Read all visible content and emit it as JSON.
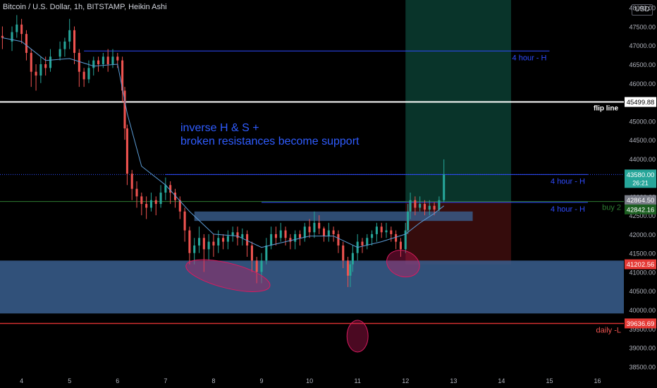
{
  "header": {
    "title": "Bitcoin / U.S. Dollar, 1h, BITSTAMP, Heikin Ashi",
    "currency": "USD"
  },
  "annotation": {
    "line1": "inverse H & S +",
    "line2": "broken resistances become support"
  },
  "colors": {
    "background": "#000000",
    "bull": "#26a69a",
    "bear": "#ef5350",
    "ma": "#5b9bd5",
    "zone": "#3a5f8f",
    "resistance": "#2f4bff",
    "flip": "#ffffff",
    "buy": "#2e7d32",
    "support": "#d32f2f",
    "ellipse": "#d81b60"
  },
  "chart_data": {
    "type": "candlestick",
    "ylim": [
      38300,
      48200
    ],
    "xlim": [
      3.55,
      16.55
    ],
    "x_ticks": [
      4,
      5,
      6,
      7,
      8,
      9,
      10,
      11,
      12,
      13,
      14,
      15,
      16
    ],
    "y_ticks": [
      38500,
      39000,
      39500,
      40000,
      40500,
      41000,
      41500,
      42000,
      42500,
      43000,
      43500,
      44000,
      44500,
      45000,
      45500,
      46000,
      46500,
      47000,
      47500,
      48000
    ],
    "candles": [
      {
        "x": 3.6,
        "o": 47250,
        "c": 47200,
        "h": 47500,
        "l": 46900
      },
      {
        "x": 3.8,
        "o": 47100,
        "c": 47350,
        "h": 47500,
        "l": 46850
      },
      {
        "x": 3.9,
        "o": 47350,
        "c": 47550,
        "h": 47800,
        "l": 47200
      },
      {
        "x": 4.0,
        "o": 47550,
        "c": 47300,
        "h": 47700,
        "l": 47050
      },
      {
        "x": 4.1,
        "o": 47300,
        "c": 46800,
        "h": 47400,
        "l": 46600
      },
      {
        "x": 4.2,
        "o": 46800,
        "c": 46300,
        "h": 46900,
        "l": 45900
      },
      {
        "x": 4.3,
        "o": 46300,
        "c": 46200,
        "h": 46500,
        "l": 45800
      },
      {
        "x": 4.4,
        "o": 46200,
        "c": 46500,
        "h": 46700,
        "l": 46000
      },
      {
        "x": 4.5,
        "o": 46500,
        "c": 46400,
        "h": 46700,
        "l": 46200
      },
      {
        "x": 4.6,
        "o": 46400,
        "c": 46700,
        "h": 46900,
        "l": 46300
      },
      {
        "x": 4.8,
        "o": 46700,
        "c": 46900,
        "h": 47100,
        "l": 46600
      },
      {
        "x": 4.9,
        "o": 46900,
        "c": 47100,
        "h": 47200,
        "l": 46700
      },
      {
        "x": 5.0,
        "o": 47100,
        "c": 47400,
        "h": 47700,
        "l": 46900
      },
      {
        "x": 5.1,
        "o": 47400,
        "c": 46800,
        "h": 47500,
        "l": 46500
      },
      {
        "x": 5.2,
        "o": 46800,
        "c": 46300,
        "h": 46900,
        "l": 45900
      },
      {
        "x": 5.3,
        "o": 46300,
        "c": 46100,
        "h": 46400,
        "l": 45900
      },
      {
        "x": 5.4,
        "o": 46100,
        "c": 46400,
        "h": 46600,
        "l": 46000
      },
      {
        "x": 5.5,
        "o": 46400,
        "c": 46600,
        "h": 46700,
        "l": 46200
      },
      {
        "x": 5.6,
        "o": 46600,
        "c": 46500,
        "h": 46700,
        "l": 46300
      },
      {
        "x": 5.7,
        "o": 46500,
        "c": 46700,
        "h": 46800,
        "l": 46400
      },
      {
        "x": 5.8,
        "o": 46700,
        "c": 46500,
        "h": 46900,
        "l": 46300
      },
      {
        "x": 5.9,
        "o": 46500,
        "c": 46700,
        "h": 46900,
        "l": 46400
      },
      {
        "x": 6.0,
        "o": 46700,
        "c": 46600,
        "h": 46800,
        "l": 46400
      },
      {
        "x": 6.1,
        "o": 46600,
        "c": 45800,
        "h": 46700,
        "l": 45500
      },
      {
        "x": 6.15,
        "o": 45800,
        "c": 44800,
        "h": 45900,
        "l": 44500
      },
      {
        "x": 6.2,
        "o": 44800,
        "c": 43600,
        "h": 44900,
        "l": 43300
      },
      {
        "x": 6.3,
        "o": 43600,
        "c": 43200,
        "h": 43700,
        "l": 42900
      },
      {
        "x": 6.4,
        "o": 43200,
        "c": 43000,
        "h": 43400,
        "l": 42700
      },
      {
        "x": 6.5,
        "o": 43000,
        "c": 42800,
        "h": 43100,
        "l": 42500
      },
      {
        "x": 6.6,
        "o": 42800,
        "c": 42700,
        "h": 43000,
        "l": 42400
      },
      {
        "x": 6.7,
        "o": 42700,
        "c": 42900,
        "h": 43100,
        "l": 42600
      },
      {
        "x": 6.8,
        "o": 42900,
        "c": 42800,
        "h": 43000,
        "l": 42500
      },
      {
        "x": 6.9,
        "o": 42800,
        "c": 43100,
        "h": 43300,
        "l": 42700
      },
      {
        "x": 7.0,
        "o": 43100,
        "c": 43300,
        "h": 43500,
        "l": 42900
      },
      {
        "x": 7.1,
        "o": 43300,
        "c": 43100,
        "h": 43400,
        "l": 42800
      },
      {
        "x": 7.2,
        "o": 43100,
        "c": 42900,
        "h": 43200,
        "l": 42700
      },
      {
        "x": 7.3,
        "o": 42900,
        "c": 42600,
        "h": 43000,
        "l": 42400
      },
      {
        "x": 7.4,
        "o": 42600,
        "c": 42100,
        "h": 42700,
        "l": 41800
      },
      {
        "x": 7.5,
        "o": 42100,
        "c": 41500,
        "h": 42200,
        "l": 41200
      },
      {
        "x": 7.6,
        "o": 41500,
        "c": 41700,
        "h": 41900,
        "l": 41200
      },
      {
        "x": 7.7,
        "o": 41700,
        "c": 41900,
        "h": 42200,
        "l": 41500
      },
      {
        "x": 7.8,
        "o": 41900,
        "c": 41600,
        "h": 42000,
        "l": 41000
      },
      {
        "x": 7.9,
        "o": 41600,
        "c": 41800,
        "h": 42000,
        "l": 41300
      },
      {
        "x": 8.0,
        "o": 41800,
        "c": 41700,
        "h": 42000,
        "l": 41400
      },
      {
        "x": 8.1,
        "o": 41700,
        "c": 41900,
        "h": 42100,
        "l": 41500
      },
      {
        "x": 8.2,
        "o": 41900,
        "c": 41800,
        "h": 42000,
        "l": 41600
      },
      {
        "x": 8.3,
        "o": 41800,
        "c": 41950,
        "h": 42100,
        "l": 41600
      },
      {
        "x": 8.4,
        "o": 41950,
        "c": 42050,
        "h": 42200,
        "l": 41800
      },
      {
        "x": 8.5,
        "o": 42050,
        "c": 41900,
        "h": 42200,
        "l": 41700
      },
      {
        "x": 8.6,
        "o": 41900,
        "c": 42000,
        "h": 42150,
        "l": 41700
      },
      {
        "x": 8.7,
        "o": 42000,
        "c": 41700,
        "h": 42100,
        "l": 41400
      },
      {
        "x": 8.8,
        "o": 41700,
        "c": 41300,
        "h": 41800,
        "l": 41000
      },
      {
        "x": 8.9,
        "o": 41300,
        "c": 41000,
        "h": 41400,
        "l": 40700
      },
      {
        "x": 9.0,
        "o": 41000,
        "c": 41300,
        "h": 41500,
        "l": 40700
      },
      {
        "x": 9.1,
        "o": 41300,
        "c": 41700,
        "h": 41900,
        "l": 41200
      },
      {
        "x": 9.2,
        "o": 41700,
        "c": 42000,
        "h": 42200,
        "l": 41600
      },
      {
        "x": 9.3,
        "o": 42000,
        "c": 41900,
        "h": 42200,
        "l": 41700
      },
      {
        "x": 9.4,
        "o": 41900,
        "c": 42100,
        "h": 42300,
        "l": 41800
      },
      {
        "x": 9.5,
        "o": 42100,
        "c": 41900,
        "h": 42200,
        "l": 41700
      },
      {
        "x": 9.6,
        "o": 41900,
        "c": 41800,
        "h": 42000,
        "l": 41600
      },
      {
        "x": 9.7,
        "o": 41800,
        "c": 42000,
        "h": 42100,
        "l": 41600
      },
      {
        "x": 9.8,
        "o": 42000,
        "c": 41900,
        "h": 42100,
        "l": 41700
      },
      {
        "x": 9.9,
        "o": 41900,
        "c": 42200,
        "h": 42300,
        "l": 41800
      },
      {
        "x": 10.0,
        "o": 42200,
        "c": 42050,
        "h": 42400,
        "l": 41900
      },
      {
        "x": 10.1,
        "o": 42050,
        "c": 42300,
        "h": 42600,
        "l": 41900
      },
      {
        "x": 10.2,
        "o": 42300,
        "c": 42150,
        "h": 42500,
        "l": 42000
      },
      {
        "x": 10.3,
        "o": 42150,
        "c": 41950,
        "h": 42200,
        "l": 41800
      },
      {
        "x": 10.4,
        "o": 41950,
        "c": 42100,
        "h": 42300,
        "l": 41800
      },
      {
        "x": 10.5,
        "o": 42100,
        "c": 42000,
        "h": 42200,
        "l": 41800
      },
      {
        "x": 10.6,
        "o": 42000,
        "c": 41700,
        "h": 42100,
        "l": 41500
      },
      {
        "x": 10.7,
        "o": 41700,
        "c": 41300,
        "h": 41800,
        "l": 41100
      },
      {
        "x": 10.8,
        "o": 41300,
        "c": 40900,
        "h": 41400,
        "l": 40600
      },
      {
        "x": 10.85,
        "o": 40900,
        "c": 41200,
        "h": 41300,
        "l": 40600
      },
      {
        "x": 10.9,
        "o": 41200,
        "c": 41500,
        "h": 41700,
        "l": 41000
      },
      {
        "x": 11.0,
        "o": 41500,
        "c": 41800,
        "h": 42000,
        "l": 41300
      },
      {
        "x": 11.1,
        "o": 41800,
        "c": 41700,
        "h": 41900,
        "l": 41500
      },
      {
        "x": 11.2,
        "o": 41700,
        "c": 41900,
        "h": 42000,
        "l": 41600
      },
      {
        "x": 11.3,
        "o": 41900,
        "c": 42000,
        "h": 42100,
        "l": 41700
      },
      {
        "x": 11.4,
        "o": 42000,
        "c": 42200,
        "h": 42300,
        "l": 41800
      },
      {
        "x": 11.5,
        "o": 42200,
        "c": 42050,
        "h": 42300,
        "l": 41900
      },
      {
        "x": 11.6,
        "o": 42050,
        "c": 42100,
        "h": 42300,
        "l": 41900
      },
      {
        "x": 11.7,
        "o": 42100,
        "c": 42000,
        "h": 42200,
        "l": 41800
      },
      {
        "x": 11.8,
        "o": 42000,
        "c": 41800,
        "h": 42100,
        "l": 41600
      },
      {
        "x": 11.9,
        "o": 41800,
        "c": 41600,
        "h": 41900,
        "l": 41400
      },
      {
        "x": 12.0,
        "o": 41600,
        "c": 42100,
        "h": 42300,
        "l": 41500
      },
      {
        "x": 12.05,
        "o": 42100,
        "c": 42600,
        "h": 42800,
        "l": 42000
      },
      {
        "x": 12.1,
        "o": 42600,
        "c": 42900,
        "h": 43100,
        "l": 42400
      },
      {
        "x": 12.2,
        "o": 42900,
        "c": 42700,
        "h": 43000,
        "l": 42500
      },
      {
        "x": 12.3,
        "o": 42700,
        "c": 42800,
        "h": 43000,
        "l": 42600
      },
      {
        "x": 12.4,
        "o": 42800,
        "c": 42650,
        "h": 42900,
        "l": 42500
      },
      {
        "x": 12.5,
        "o": 42650,
        "c": 42750,
        "h": 42900,
        "l": 42500
      },
      {
        "x": 12.6,
        "o": 42750,
        "c": 42650,
        "h": 42850,
        "l": 42500
      },
      {
        "x": 12.7,
        "o": 42650,
        "c": 42900,
        "h": 43000,
        "l": 42600
      },
      {
        "x": 12.8,
        "o": 42900,
        "c": 43580,
        "h": 43980,
        "l": 42850
      }
    ],
    "ma": [
      [
        3.6,
        47200
      ],
      [
        4.0,
        47100
      ],
      [
        4.5,
        46600
      ],
      [
        5.0,
        46650
      ],
      [
        5.5,
        46450
      ],
      [
        6.0,
        46500
      ],
      [
        6.2,
        45200
      ],
      [
        6.5,
        43800
      ],
      [
        7.0,
        43300
      ],
      [
        7.5,
        42600
      ],
      [
        8.0,
        42000
      ],
      [
        8.5,
        41950
      ],
      [
        9.0,
        41650
      ],
      [
        9.5,
        41800
      ],
      [
        10.0,
        41950
      ],
      [
        10.5,
        41950
      ],
      [
        11.0,
        41650
      ],
      [
        11.5,
        41800
      ],
      [
        12.0,
        42000
      ],
      [
        12.3,
        42300
      ],
      [
        12.6,
        42550
      ],
      [
        12.8,
        42750
      ]
    ],
    "zones": [
      {
        "x1": 3.55,
        "x2": 16.55,
        "y1": 39900,
        "y2": 41300
      },
      {
        "x1": 7.6,
        "x2": 13.4,
        "y1": 42350,
        "y2": 42600
      }
    ],
    "lines": [
      {
        "kind": "resistance",
        "y": 46850,
        "x1": 5.3,
        "x2": 15.0,
        "label": "4 hour - H"
      },
      {
        "kind": "flip",
        "y": 45499.88,
        "label": "flip line"
      },
      {
        "kind": "resistance",
        "y": 43580,
        "x1": 7.0,
        "x2": 15.8,
        "label": "4 hour - H"
      },
      {
        "kind": "buy",
        "y": 42864.5,
        "x1": 3.55,
        "x2": 16.55,
        "label": "buy 2"
      },
      {
        "kind": "resistance",
        "y": 42842.16,
        "x1": 9.0,
        "x2": 15.8,
        "label": "4 hour - H"
      },
      {
        "kind": "support",
        "y": 39636.69,
        "label": "daily -L"
      }
    ],
    "price_labels": [
      {
        "value": "45499.88",
        "y": 45499.88,
        "kind": "flip"
      },
      {
        "value": "43580.00",
        "y": 43580,
        "kind": "current",
        "sub": "26:21"
      },
      {
        "value": "42864.50",
        "y": 42864.5,
        "kind": "grey"
      },
      {
        "value": "42842.16",
        "y": 42842.16,
        "kind": "buy"
      },
      {
        "value": "41202.56",
        "y": 41202.56,
        "kind": "support"
      },
      {
        "value": "39636.69",
        "y": 39636.69,
        "kind": "support"
      }
    ],
    "position": {
      "x1": 12.0,
      "x2": 14.2,
      "entry": 42864.5,
      "target": 48200,
      "stop": 41200
    },
    "ellipses": [
      {
        "cx": 8.3,
        "cy": 40900,
        "rx": 0.9,
        "ry": 330,
        "rot": 14
      },
      {
        "cx": 11.0,
        "cy": 39300,
        "rx": 0.22,
        "ry": 420,
        "rot": 0
      },
      {
        "cx": 11.95,
        "cy": 41220,
        "rx": 0.35,
        "ry": 340,
        "rot": 20
      }
    ]
  }
}
